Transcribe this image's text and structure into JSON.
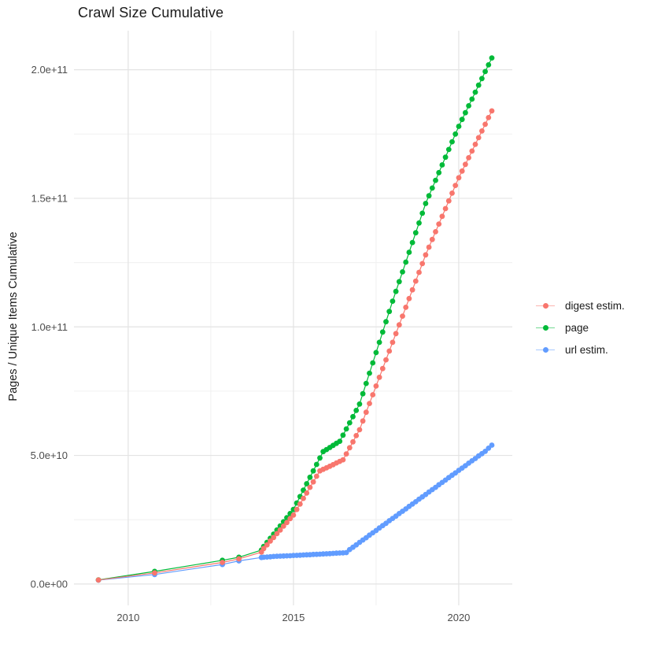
{
  "chart_data": {
    "type": "line",
    "title": "Crawl Size Cumulative",
    "xlabel": "",
    "ylabel": "Pages / Unique Items Cumulative",
    "legend_position": "right",
    "grid": true,
    "background": "#ffffff",
    "grid_major_color": "#e3e3e3",
    "grid_minor_color": "#f0f0f0",
    "tick_label_color": "#4d4d4d",
    "x_domain": [
      2008.36,
      2021.62
    ],
    "y_domain_billions": [
      -8.3,
      215.2
    ],
    "x_ticks": {
      "values": [
        2010,
        2015,
        2020
      ],
      "labels": [
        "2010",
        "2015",
        "2020"
      ],
      "minor": [
        2012.5,
        2017.5
      ]
    },
    "y_ticks": {
      "values_billions": [
        0,
        50,
        100,
        150,
        200
      ],
      "labels": [
        "0.0e+00",
        "5.0e+10",
        "1.0e+11",
        "1.5e+11",
        "2.0e+11"
      ],
      "minor_billions": [
        25,
        75,
        125,
        175
      ]
    },
    "unit_note": "point values are [decimal year, cumulative count in billions (1e9)]",
    "draw_order": [
      2,
      1,
      0
    ],
    "series": [
      {
        "name": "digest estim.",
        "color": "#F8766D",
        "points": [
          [
            2009.1,
            1.55
          ],
          [
            2010.8,
            4.3
          ],
          [
            2012.85,
            8.4
          ],
          [
            2013.35,
            9.8
          ],
          [
            2014.03,
            12.4
          ],
          [
            2014.1,
            13.8
          ],
          [
            2014.2,
            15.2
          ],
          [
            2014.3,
            16.7
          ],
          [
            2014.4,
            18.1
          ],
          [
            2014.5,
            19.6
          ],
          [
            2014.6,
            21.0
          ],
          [
            2014.7,
            22.5
          ],
          [
            2014.8,
            23.9
          ],
          [
            2014.9,
            25.4
          ],
          [
            2015.0,
            26.8
          ],
          [
            2015.1,
            29.0
          ],
          [
            2015.2,
            31.1
          ],
          [
            2015.3,
            33.3
          ],
          [
            2015.4,
            35.4
          ],
          [
            2015.5,
            37.6
          ],
          [
            2015.6,
            39.7
          ],
          [
            2015.7,
            41.9
          ],
          [
            2015.8,
            44.0
          ],
          [
            2015.9,
            44.6
          ],
          [
            2016.0,
            45.2
          ],
          [
            2016.1,
            45.8
          ],
          [
            2016.2,
            46.4
          ],
          [
            2016.3,
            47.1
          ],
          [
            2016.4,
            47.7
          ],
          [
            2016.5,
            48.3
          ],
          [
            2016.6,
            50.6
          ],
          [
            2016.7,
            53.0
          ],
          [
            2016.8,
            55.3
          ],
          [
            2016.9,
            57.7
          ],
          [
            2017.0,
            60.0
          ],
          [
            2017.1,
            63.4
          ],
          [
            2017.2,
            66.8
          ],
          [
            2017.3,
            70.2
          ],
          [
            2017.4,
            73.6
          ],
          [
            2017.5,
            77.0
          ],
          [
            2017.6,
            80.4
          ],
          [
            2017.7,
            83.8
          ],
          [
            2017.8,
            87.2
          ],
          [
            2017.9,
            90.6
          ],
          [
            2018.0,
            94.0
          ],
          [
            2018.1,
            97.4
          ],
          [
            2018.2,
            100.8
          ],
          [
            2018.3,
            104.2
          ],
          [
            2018.4,
            107.6
          ],
          [
            2018.5,
            111.0
          ],
          [
            2018.6,
            114.4
          ],
          [
            2018.7,
            117.8
          ],
          [
            2018.8,
            121.2
          ],
          [
            2018.9,
            124.6
          ],
          [
            2019.0,
            128.0
          ],
          [
            2019.1,
            131.0
          ],
          [
            2019.2,
            134.0
          ],
          [
            2019.3,
            137.0
          ],
          [
            2019.4,
            140.0
          ],
          [
            2019.5,
            143.0
          ],
          [
            2019.6,
            146.0
          ],
          [
            2019.7,
            149.0
          ],
          [
            2019.8,
            152.0
          ],
          [
            2019.9,
            155.0
          ],
          [
            2020.0,
            158.0
          ],
          [
            2020.1,
            160.6
          ],
          [
            2020.2,
            163.2
          ],
          [
            2020.3,
            165.8
          ],
          [
            2020.4,
            168.4
          ],
          [
            2020.5,
            171.0
          ],
          [
            2020.6,
            173.6
          ],
          [
            2020.7,
            176.2
          ],
          [
            2020.8,
            178.8
          ],
          [
            2020.9,
            181.4
          ],
          [
            2021.0,
            184.0
          ]
        ]
      },
      {
        "name": "page",
        "color": "#00BA38",
        "points": [
          [
            2009.1,
            1.6
          ],
          [
            2010.8,
            4.9
          ],
          [
            2012.85,
            9.2
          ],
          [
            2013.35,
            10.4
          ],
          [
            2014.03,
            13.2
          ],
          [
            2014.1,
            14.6
          ],
          [
            2014.2,
            16.2
          ],
          [
            2014.3,
            17.8
          ],
          [
            2014.4,
            19.4
          ],
          [
            2014.5,
            21.0
          ],
          [
            2014.6,
            22.6
          ],
          [
            2014.7,
            24.2
          ],
          [
            2014.8,
            25.8
          ],
          [
            2014.9,
            27.4
          ],
          [
            2015.0,
            29.0
          ],
          [
            2015.1,
            31.5
          ],
          [
            2015.2,
            34.0
          ],
          [
            2015.3,
            36.5
          ],
          [
            2015.4,
            39.0
          ],
          [
            2015.5,
            41.5
          ],
          [
            2015.6,
            44.0
          ],
          [
            2015.7,
            46.5
          ],
          [
            2015.8,
            49.0
          ],
          [
            2015.9,
            51.5
          ],
          [
            2016.0,
            52.3
          ],
          [
            2016.1,
            53.1
          ],
          [
            2016.2,
            53.9
          ],
          [
            2016.3,
            54.7
          ],
          [
            2016.4,
            55.5
          ],
          [
            2016.5,
            57.9
          ],
          [
            2016.6,
            60.3
          ],
          [
            2016.7,
            62.7
          ],
          [
            2016.8,
            65.1
          ],
          [
            2016.9,
            67.5
          ],
          [
            2017.0,
            70.0
          ],
          [
            2017.1,
            74.0
          ],
          [
            2017.2,
            78.0
          ],
          [
            2017.3,
            82.0
          ],
          [
            2017.4,
            86.0
          ],
          [
            2017.5,
            90.0
          ],
          [
            2017.6,
            94.0
          ],
          [
            2017.7,
            98.0
          ],
          [
            2017.8,
            102.0
          ],
          [
            2017.9,
            106.0
          ],
          [
            2018.0,
            110.0
          ],
          [
            2018.1,
            113.8
          ],
          [
            2018.2,
            117.6
          ],
          [
            2018.3,
            121.4
          ],
          [
            2018.4,
            125.2
          ],
          [
            2018.5,
            129.0
          ],
          [
            2018.6,
            132.8
          ],
          [
            2018.7,
            136.6
          ],
          [
            2018.8,
            140.4
          ],
          [
            2018.9,
            144.2
          ],
          [
            2019.0,
            148.0
          ],
          [
            2019.1,
            151.0
          ],
          [
            2019.2,
            154.0
          ],
          [
            2019.3,
            157.0
          ],
          [
            2019.4,
            160.0
          ],
          [
            2019.5,
            163.0
          ],
          [
            2019.6,
            166.0
          ],
          [
            2019.7,
            169.0
          ],
          [
            2019.8,
            172.0
          ],
          [
            2019.9,
            175.0
          ],
          [
            2020.0,
            178.0
          ],
          [
            2020.1,
            180.7
          ],
          [
            2020.2,
            183.3
          ],
          [
            2020.3,
            186.0
          ],
          [
            2020.4,
            188.6
          ],
          [
            2020.5,
            191.3
          ],
          [
            2020.6,
            194.0
          ],
          [
            2020.7,
            196.6
          ],
          [
            2020.8,
            199.3
          ],
          [
            2020.9,
            201.9
          ],
          [
            2021.0,
            204.6
          ]
        ]
      },
      {
        "name": "url estim.",
        "color": "#619CFF",
        "points": [
          [
            2009.1,
            1.5
          ],
          [
            2010.8,
            3.7
          ],
          [
            2012.85,
            7.6
          ],
          [
            2013.35,
            9.0
          ],
          [
            2014.03,
            10.3
          ],
          [
            2014.1,
            10.4
          ],
          [
            2014.2,
            10.5
          ],
          [
            2014.3,
            10.6
          ],
          [
            2014.4,
            10.7
          ],
          [
            2014.5,
            10.8
          ],
          [
            2014.6,
            10.85
          ],
          [
            2014.7,
            10.9
          ],
          [
            2014.8,
            10.95
          ],
          [
            2014.9,
            11.0
          ],
          [
            2015.0,
            11.1
          ],
          [
            2015.1,
            11.15
          ],
          [
            2015.2,
            11.2
          ],
          [
            2015.3,
            11.3
          ],
          [
            2015.4,
            11.35
          ],
          [
            2015.5,
            11.4
          ],
          [
            2015.6,
            11.5
          ],
          [
            2015.7,
            11.55
          ],
          [
            2015.8,
            11.6
          ],
          [
            2015.9,
            11.7
          ],
          [
            2016.0,
            11.75
          ],
          [
            2016.1,
            11.8
          ],
          [
            2016.2,
            11.9
          ],
          [
            2016.3,
            12.0
          ],
          [
            2016.4,
            12.05
          ],
          [
            2016.5,
            12.1
          ],
          [
            2016.6,
            12.2
          ],
          [
            2016.7,
            13.4
          ],
          [
            2016.8,
            14.3
          ],
          [
            2016.9,
            15.2
          ],
          [
            2017.0,
            16.2
          ],
          [
            2017.1,
            17.1
          ],
          [
            2017.2,
            18.0
          ],
          [
            2017.3,
            19.0
          ],
          [
            2017.4,
            19.9
          ],
          [
            2017.5,
            20.8
          ],
          [
            2017.6,
            21.8
          ],
          [
            2017.7,
            22.7
          ],
          [
            2017.8,
            23.6
          ],
          [
            2017.9,
            24.6
          ],
          [
            2018.0,
            25.5
          ],
          [
            2018.1,
            26.4
          ],
          [
            2018.2,
            27.4
          ],
          [
            2018.3,
            28.3
          ],
          [
            2018.4,
            29.2
          ],
          [
            2018.5,
            30.2
          ],
          [
            2018.6,
            31.1
          ],
          [
            2018.7,
            32.0
          ],
          [
            2018.8,
            33.0
          ],
          [
            2018.9,
            33.9
          ],
          [
            2019.0,
            34.8
          ],
          [
            2019.1,
            35.8
          ],
          [
            2019.2,
            36.7
          ],
          [
            2019.3,
            37.6
          ],
          [
            2019.4,
            38.6
          ],
          [
            2019.5,
            39.5
          ],
          [
            2019.6,
            40.4
          ],
          [
            2019.7,
            41.4
          ],
          [
            2019.8,
            42.3
          ],
          [
            2019.9,
            43.2
          ],
          [
            2020.0,
            44.2
          ],
          [
            2020.1,
            45.1
          ],
          [
            2020.2,
            46.0
          ],
          [
            2020.3,
            47.0
          ],
          [
            2020.4,
            47.9
          ],
          [
            2020.5,
            48.8
          ],
          [
            2020.6,
            49.8
          ],
          [
            2020.7,
            50.7
          ],
          [
            2020.8,
            51.6
          ],
          [
            2020.9,
            52.8
          ],
          [
            2021.0,
            54.0
          ]
        ]
      }
    ]
  }
}
